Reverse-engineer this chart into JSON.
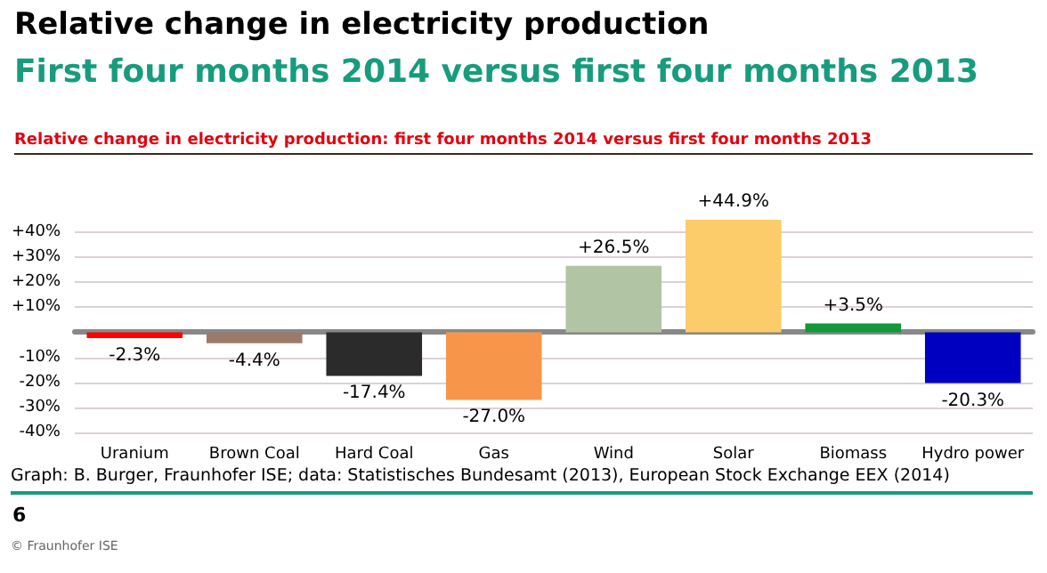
{
  "chart_data": {
    "type": "bar",
    "title": "Relative change in electricity production",
    "subtitle": "First four months 2014 versus first four months 2013",
    "annotations": [
      "Relative change in electricity production: first four months 2014 versus first four months 2013",
      "Graph: B. Burger, Fraunhofer ISE; data: Statistisches Bundesamt (2013), European Stock Exchange EEX (2014)",
      "6",
      "© Fraunhofer ISE"
    ],
    "categories": [
      "Uranium",
      "Brown Coal",
      "Hard Coal",
      "Gas",
      "Wind",
      "Solar",
      "Biomass",
      "Hydro power"
    ],
    "values": [
      -2.3,
      -4.4,
      -17.4,
      -27.0,
      26.5,
      44.9,
      3.5,
      -20.3
    ],
    "value_labels": [
      "-2.3%",
      "-4.4%",
      "-17.4%",
      "-27.0%",
      "+26.5%",
      "+44.9%",
      "+3.5%",
      "-20.3%"
    ],
    "colors": [
      "#ff0000",
      "#9a7b6a",
      "#2b2b2b",
      "#f7964a",
      "#b1c4a4",
      "#fccb6a",
      "#13983a",
      "#0000c0"
    ],
    "ylim": [
      -40,
      46
    ],
    "yticks": [
      {
        "value": -40,
        "label": "-40%"
      },
      {
        "value": -30,
        "label": "-30%"
      },
      {
        "value": -20,
        "label": "-20%"
      },
      {
        "value": -10,
        "label": "-10%"
      },
      {
        "value": 0,
        "label": null
      },
      {
        "value": 10,
        "label": "+10%"
      },
      {
        "value": 20,
        "label": "+20%"
      },
      {
        "value": 30,
        "label": "+30%"
      },
      {
        "value": 40,
        "label": "+40%"
      }
    ],
    "grid": "y"
  }
}
